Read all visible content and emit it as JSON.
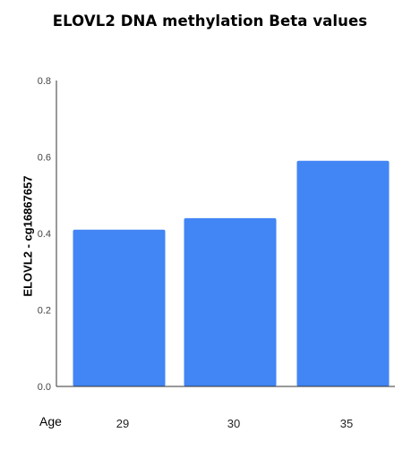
{
  "chart_data": {
    "type": "bar",
    "title": "ELOVL2 DNA methylation Beta values",
    "xlabel": "Age",
    "ylabel": "ELOVL2 - cg16867657",
    "categories": [
      "29",
      "30",
      "35"
    ],
    "values": [
      0.41,
      0.44,
      0.59
    ],
    "ylim": [
      0,
      0.8
    ],
    "yticks": [
      "0.0",
      "0.2",
      "0.4",
      "0.6",
      "0.8"
    ],
    "grid": false,
    "bar_color": "#4285f4",
    "axis_color": "#333333"
  }
}
